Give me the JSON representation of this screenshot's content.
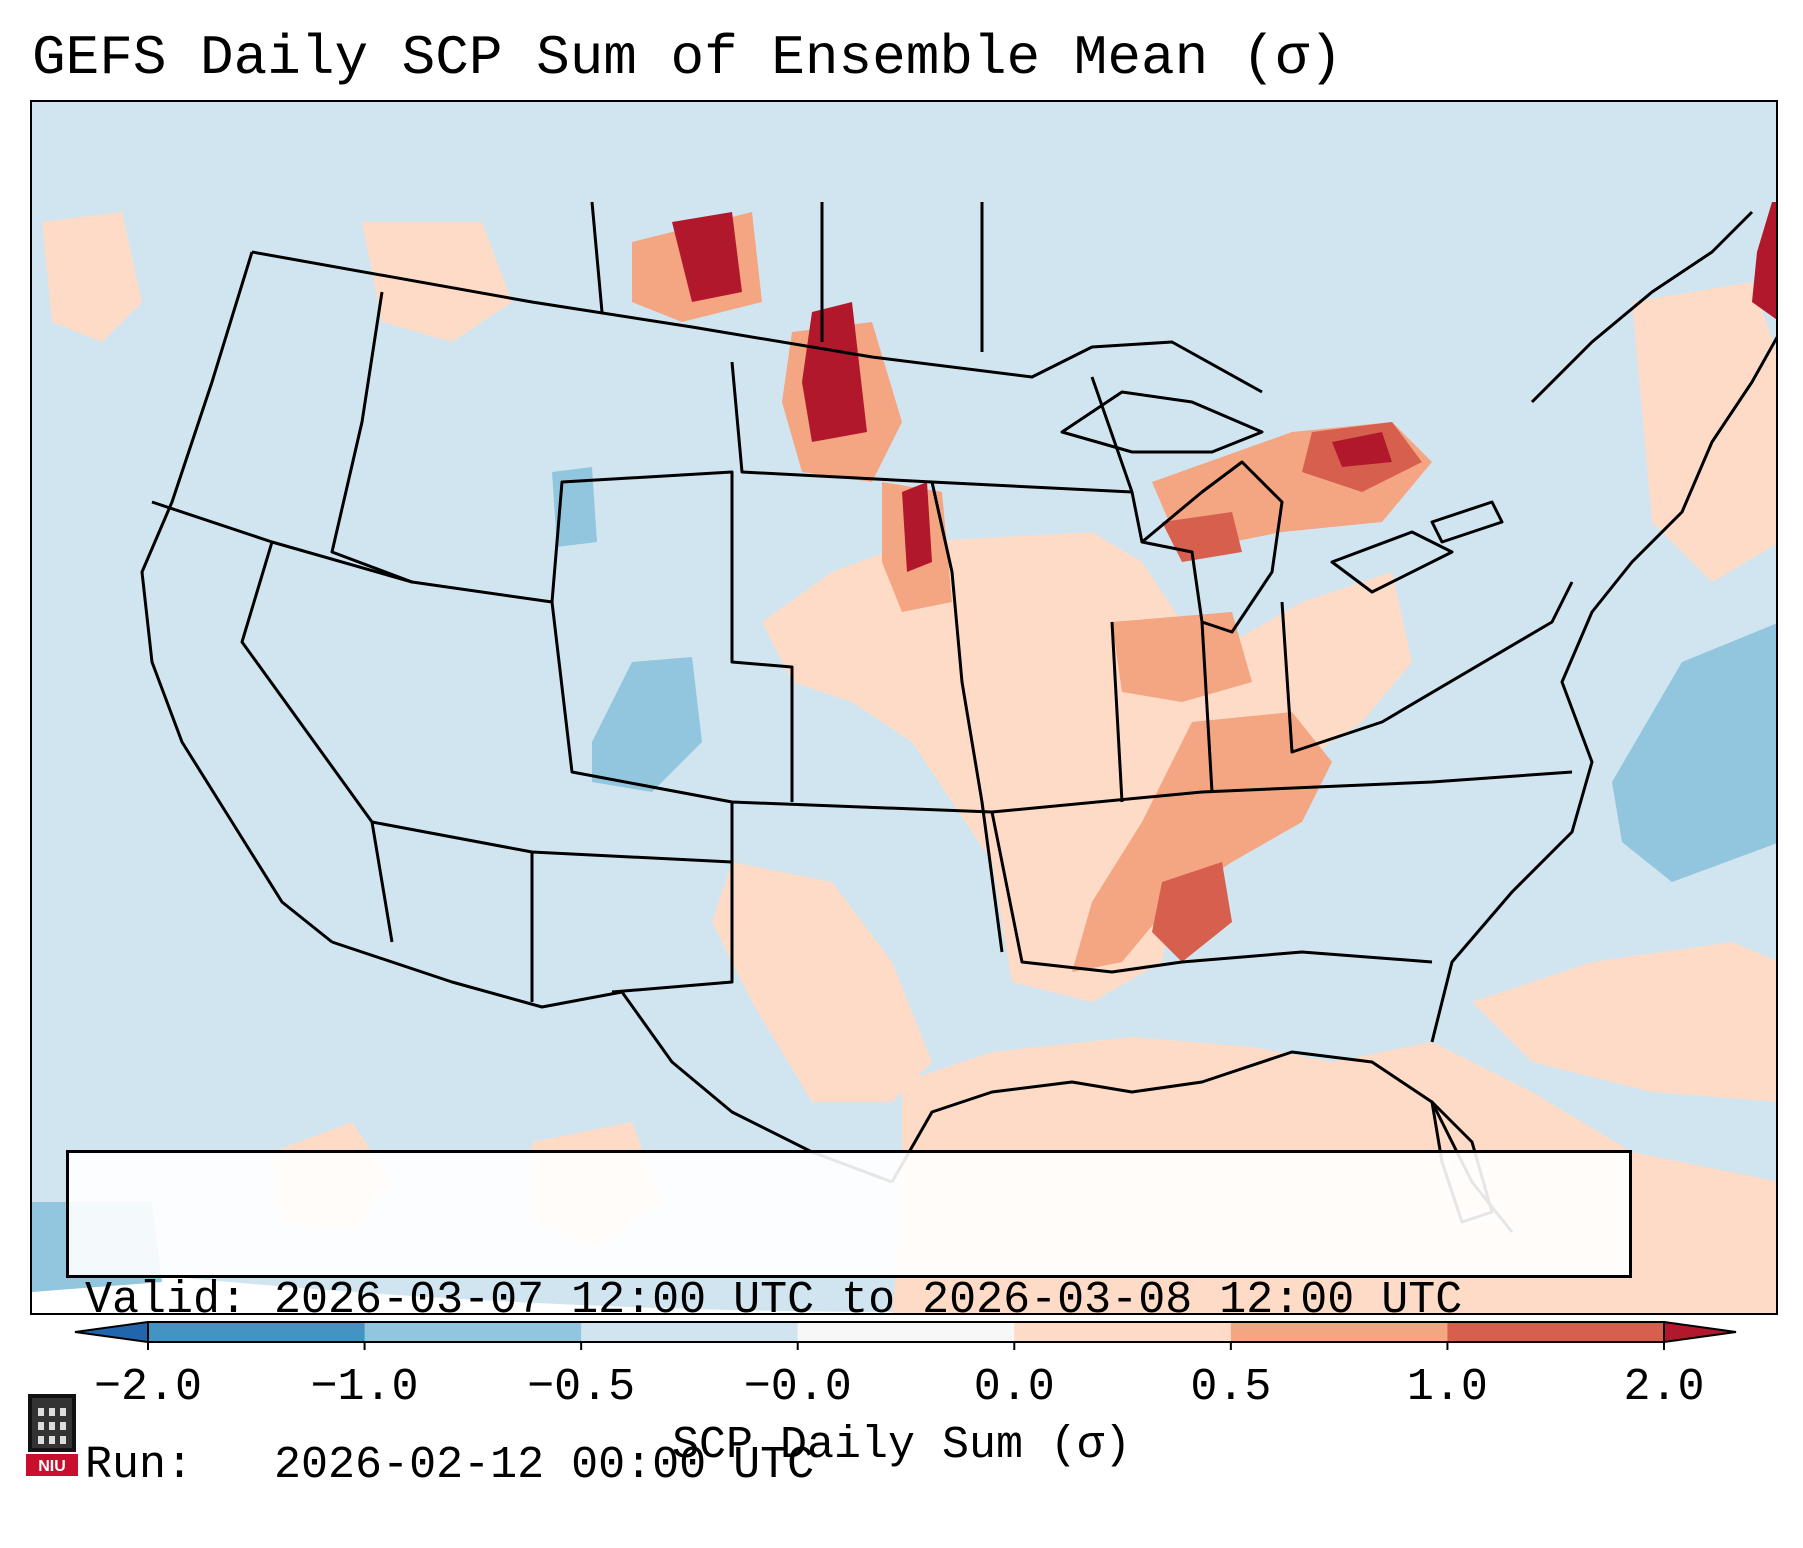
{
  "title": "GEFS Daily SCP Sum of Ensemble Mean (σ)",
  "info": {
    "valid_label": "Valid:",
    "valid_value": "2026-03-07 12:00 UTC to 2026-03-08 12:00 UTC",
    "run_label": "Run:",
    "run_value": "2026-02-12 00:00 UTC"
  },
  "colorbar": {
    "label": "SCP Daily Sum (σ)",
    "ticks": [
      "−2.0",
      "−1.0",
      "−0.5",
      "−0.0",
      "0.0",
      "0.5",
      "1.0",
      "2.0"
    ],
    "colors": [
      "#4393c3",
      "#92c5de",
      "#d1e5f0",
      "#f7f7f7",
      "#fddbc7",
      "#f4a582",
      "#d6604d"
    ],
    "under_color": "#2166ac",
    "over_color": "#b2182b"
  },
  "map": {
    "background": "#d1e5f0",
    "regions": [
      {
        "name": "plains-mississippi-valley",
        "level": "0.0 to 0.5",
        "color": "#fddbc7"
      },
      {
        "name": "gulf-of-mexico",
        "level": "0.0 to 0.5",
        "color": "#fddbc7"
      },
      {
        "name": "tennessee-valley",
        "level": "0.5 to 1.0",
        "color": "#f4a582"
      },
      {
        "name": "north-dakota-canada",
        "level": "> 2.0",
        "color": "#b2182b"
      },
      {
        "name": "michigan-ontario",
        "level": "1.0 to 2.0",
        "color": "#d6604d"
      },
      {
        "name": "colorado-atlantic",
        "level": "-1.0 to -0.5",
        "color": "#92c5de"
      }
    ]
  },
  "logo": {
    "text": "NIU"
  }
}
